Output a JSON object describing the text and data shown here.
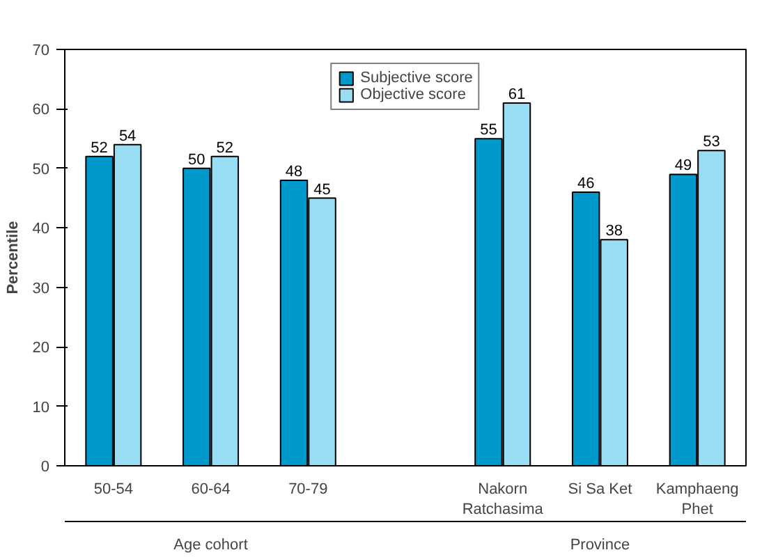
{
  "chart_data": {
    "type": "bar",
    "ylabel": "Percentile",
    "categories": [
      "50-54",
      "60-64",
      "70-79",
      null,
      "Nakorn\nRatchasima",
      "Si Sa Ket",
      "Kamphaeng\nPhet"
    ],
    "series": [
      {
        "name": "Subjective score",
        "color": "#0099cc",
        "values": [
          52,
          50,
          48,
          null,
          55,
          46,
          49
        ]
      },
      {
        "name": "Objective score",
        "color": "#99ddf5",
        "values": [
          54,
          52,
          45,
          null,
          61,
          38,
          53
        ]
      }
    ],
    "ylim": [
      0,
      70
    ],
    "yticks": [
      0,
      10,
      20,
      30,
      40,
      50,
      60,
      70
    ],
    "grid": false,
    "legend": "top",
    "data_labels": true,
    "annotations": [
      "Age cohort",
      "Province"
    ]
  }
}
